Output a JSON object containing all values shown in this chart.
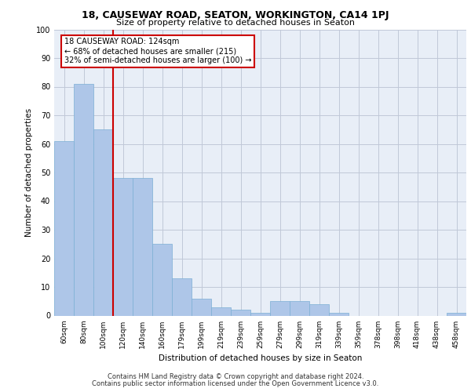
{
  "title1": "18, CAUSEWAY ROAD, SEATON, WORKINGTON, CA14 1PJ",
  "title2": "Size of property relative to detached houses in Seaton",
  "xlabel": "Distribution of detached houses by size in Seaton",
  "ylabel": "Number of detached properties",
  "categories": [
    "60sqm",
    "80sqm",
    "100sqm",
    "120sqm",
    "140sqm",
    "160sqm",
    "179sqm",
    "199sqm",
    "219sqm",
    "239sqm",
    "259sqm",
    "279sqm",
    "299sqm",
    "319sqm",
    "339sqm",
    "359sqm",
    "378sqm",
    "398sqm",
    "418sqm",
    "438sqm",
    "458sqm"
  ],
  "values": [
    61,
    81,
    65,
    48,
    48,
    25,
    13,
    6,
    3,
    2,
    1,
    5,
    5,
    4,
    1,
    0,
    0,
    0,
    0,
    0,
    1
  ],
  "bar_color": "#aec6e8",
  "bar_edge_color": "#7bafd4",
  "vline_x_idx": 3,
  "vline_color": "#cc0000",
  "annotation_line1": "18 CAUSEWAY ROAD: 124sqm",
  "annotation_line2": "← 68% of detached houses are smaller (215)",
  "annotation_line3": "32% of semi-detached houses are larger (100) →",
  "annotation_box_color": "#ffffff",
  "annotation_box_edge": "#cc0000",
  "background_color": "#e8eef7",
  "ylim": [
    0,
    100
  ],
  "yticks": [
    0,
    10,
    20,
    30,
    40,
    50,
    60,
    70,
    80,
    90,
    100
  ],
  "footer1": "Contains HM Land Registry data © Crown copyright and database right 2024.",
  "footer2": "Contains public sector information licensed under the Open Government Licence v3.0."
}
